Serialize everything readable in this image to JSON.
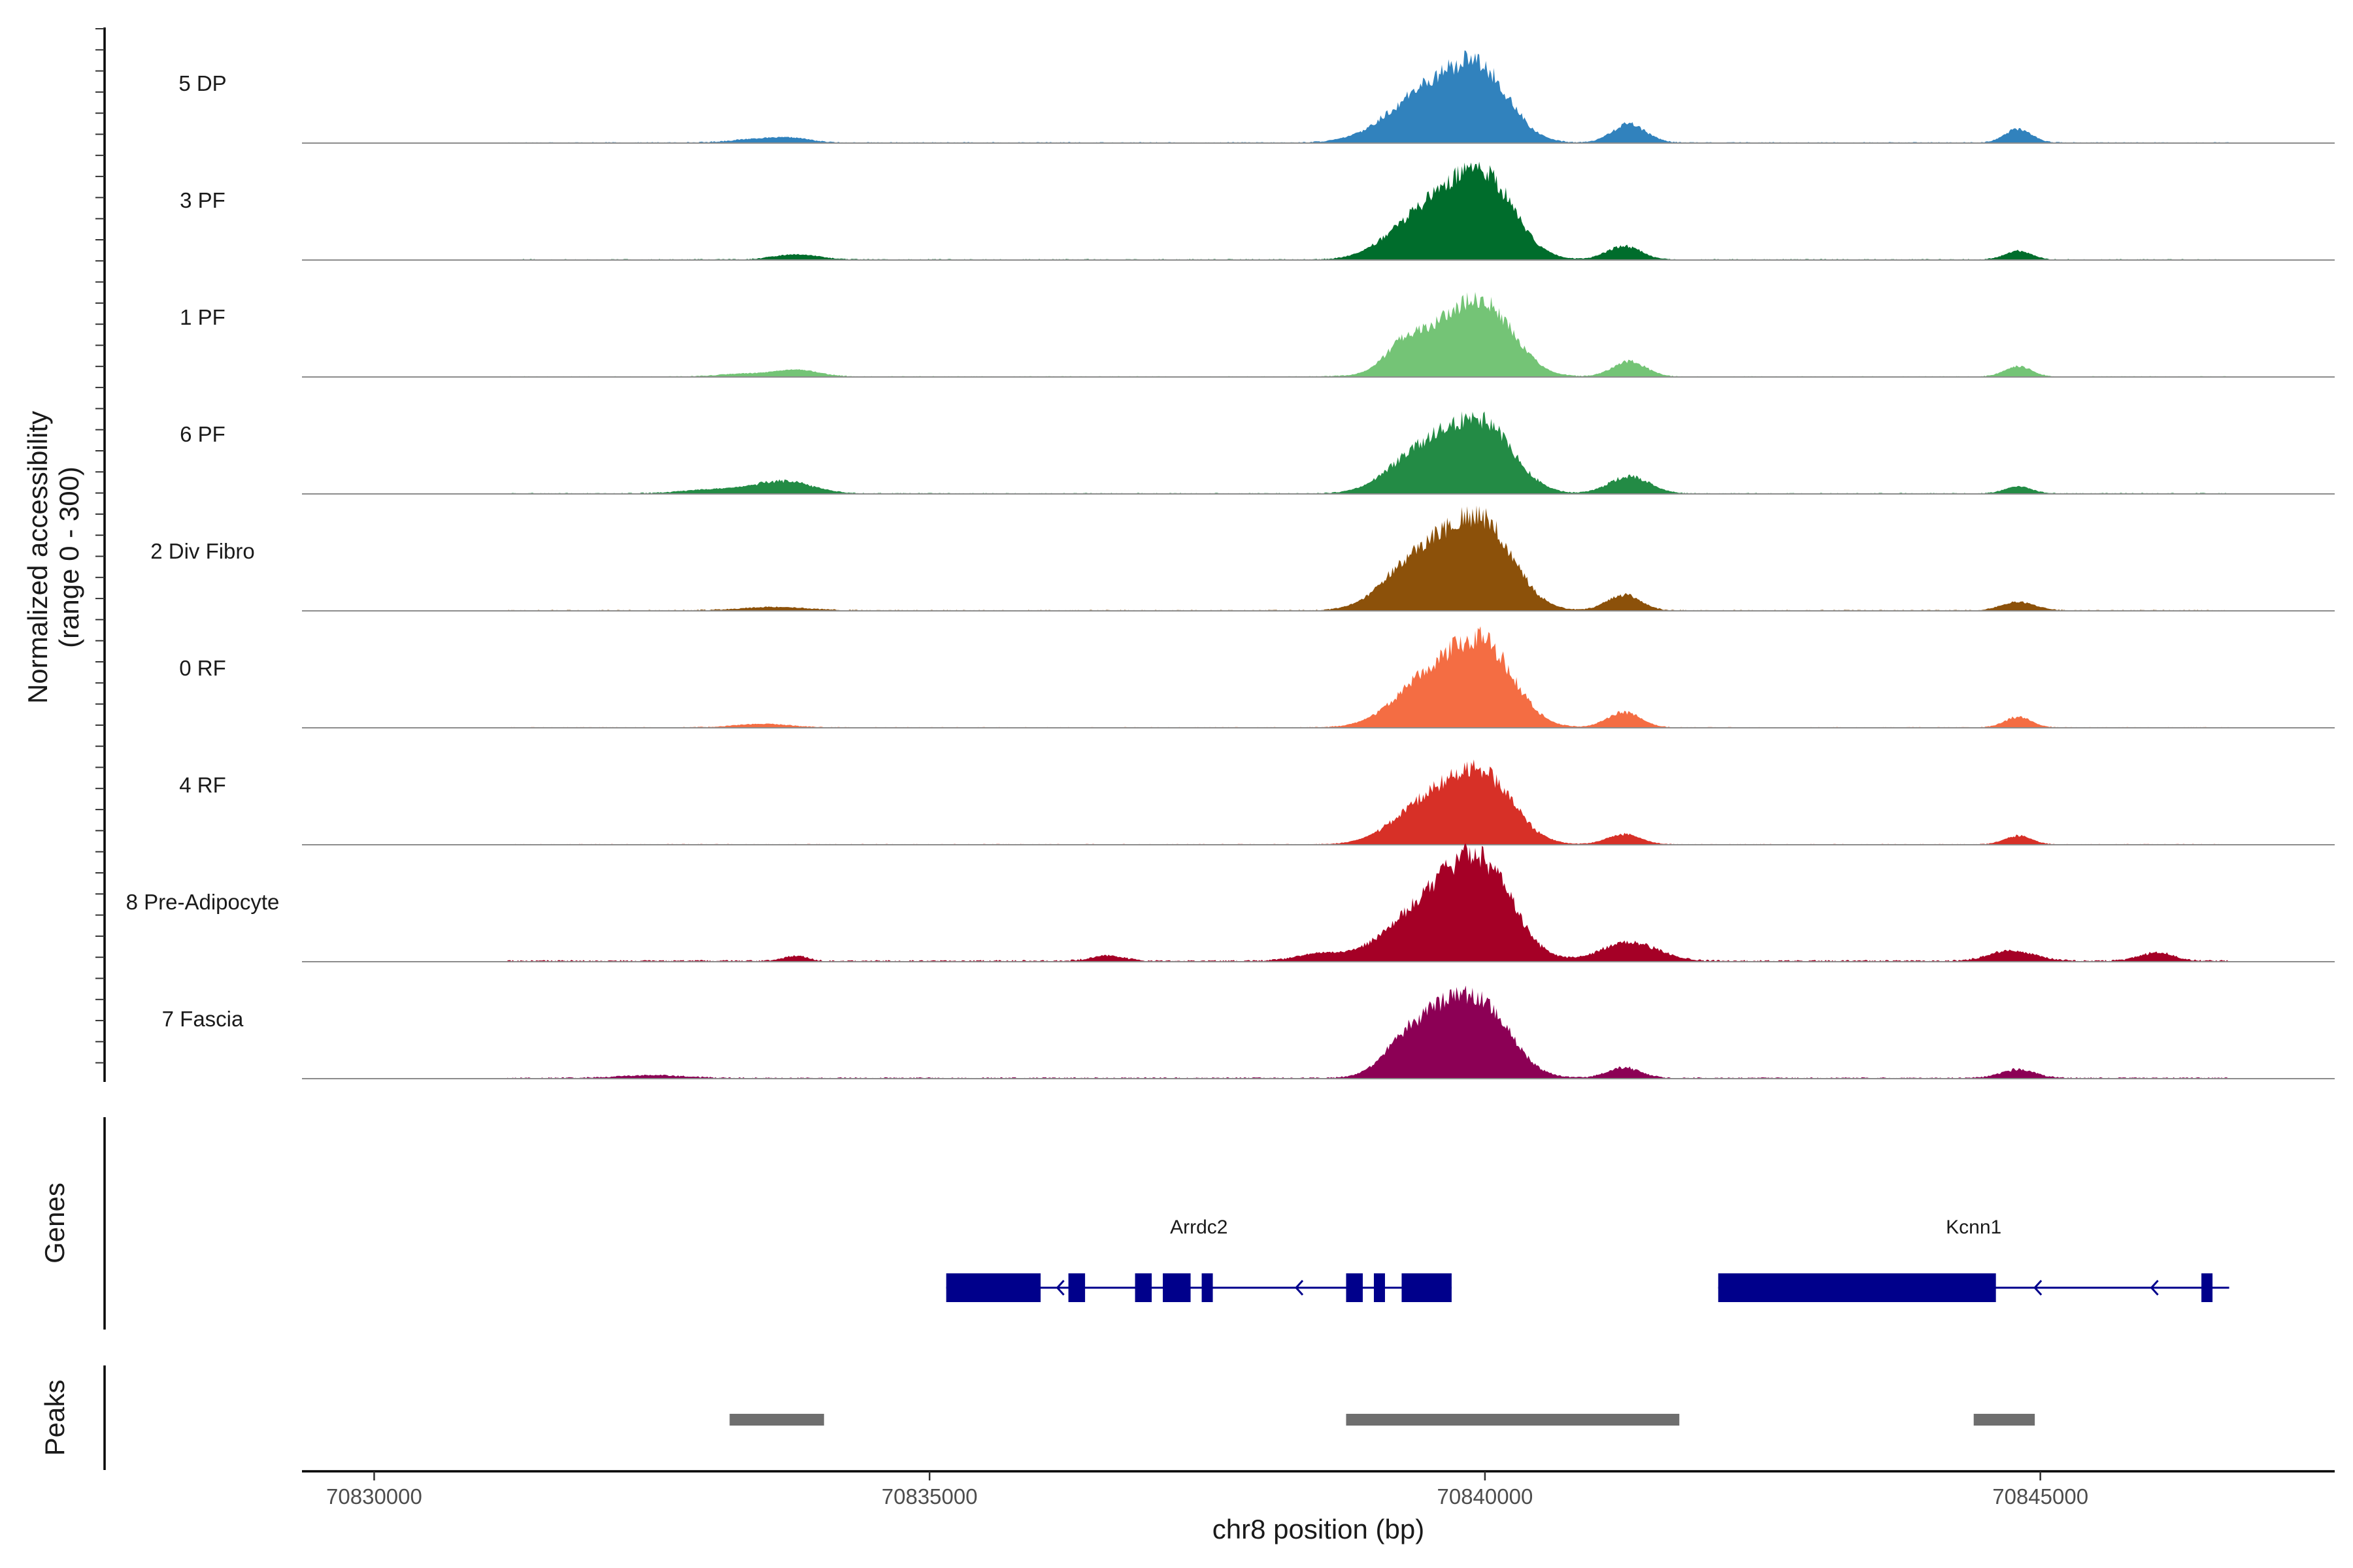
{
  "chart_data": {
    "type": "area",
    "title": "",
    "xlabel": "chr8 position (bp)",
    "ylabel_line1": "Normalized accessibility",
    "ylabel_line2": "(range 0 - 300)",
    "y_range": [
      0,
      300
    ],
    "xlim": [
      70829350,
      70847650
    ],
    "x_ticks": [
      {
        "value": 70830000,
        "label": "70830000"
      },
      {
        "value": 70835000,
        "label": "70835000"
      },
      {
        "value": 70840000,
        "label": "70840000"
      },
      {
        "value": 70845000,
        "label": "70845000"
      }
    ],
    "signal_range_bp": [
      70831200,
      70846700
    ],
    "tracks": [
      {
        "name": "5 DP",
        "color": "#3182bd",
        "baseline_noise": 3,
        "peaks": [
          [
            70839600,
            155,
            350
          ],
          [
            70840000,
            140,
            250
          ],
          [
            70839200,
            25,
            300
          ],
          [
            70841300,
            55,
            150
          ],
          [
            70844800,
            40,
            120
          ],
          [
            70833500,
            12,
            250
          ],
          [
            70833800,
            8,
            150
          ]
        ]
      },
      {
        "name": "3 PF",
        "color": "#006d2c",
        "baseline_noise": 3,
        "peaks": [
          [
            70839700,
            175,
            350
          ],
          [
            70840050,
            140,
            250
          ],
          [
            70839250,
            35,
            250
          ],
          [
            70841250,
            40,
            150
          ],
          [
            70844800,
            25,
            120
          ],
          [
            70833800,
            15,
            200
          ]
        ]
      },
      {
        "name": "1 PF",
        "color": "#74c476",
        "baseline_noise": 2.5,
        "peaks": [
          [
            70839700,
            150,
            350
          ],
          [
            70840050,
            120,
            250
          ],
          [
            70839250,
            45,
            150
          ],
          [
            70841300,
            45,
            150
          ],
          [
            70844800,
            30,
            120
          ],
          [
            70833800,
            20,
            200
          ],
          [
            70833300,
            8,
            200
          ]
        ]
      },
      {
        "name": "6 PF",
        "color": "#238b45",
        "baseline_noise": 3,
        "peaks": [
          [
            70839700,
            150,
            350
          ],
          [
            70840050,
            110,
            250
          ],
          [
            70839300,
            40,
            250
          ],
          [
            70841300,
            50,
            180
          ],
          [
            70844800,
            20,
            120
          ],
          [
            70833700,
            35,
            250
          ],
          [
            70833100,
            12,
            300
          ]
        ]
      },
      {
        "name": "2 Div Fibro",
        "color": "#8c510a",
        "baseline_noise": 3,
        "peaks": [
          [
            70839700,
            190,
            350
          ],
          [
            70840050,
            140,
            250
          ],
          [
            70839250,
            55,
            250
          ],
          [
            70841250,
            45,
            150
          ],
          [
            70844800,
            25,
            150
          ],
          [
            70833600,
            10,
            300
          ]
        ]
      },
      {
        "name": "0 RF",
        "color": "#f46d43",
        "baseline_noise": 2.5,
        "peaks": [
          [
            70839700,
            170,
            350
          ],
          [
            70840050,
            140,
            250
          ],
          [
            70839300,
            30,
            250
          ],
          [
            70841250,
            45,
            150
          ],
          [
            70844800,
            30,
            120
          ],
          [
            70833500,
            10,
            250
          ]
        ]
      },
      {
        "name": "4 RF",
        "color": "#d73027",
        "baseline_noise": 2.5,
        "peaks": [
          [
            70839700,
            150,
            350
          ],
          [
            70840050,
            110,
            250
          ],
          [
            70839300,
            25,
            250
          ],
          [
            70841250,
            30,
            150
          ],
          [
            70844800,
            25,
            120
          ]
        ]
      },
      {
        "name": "8 Pre-Adipocyte",
        "color": "#a50026",
        "baseline_noise": 5,
        "peaks": [
          [
            70839700,
            215,
            350
          ],
          [
            70840050,
            150,
            250
          ],
          [
            70839200,
            40,
            300
          ],
          [
            70841300,
            55,
            250
          ],
          [
            70844750,
            30,
            200
          ],
          [
            70846050,
            25,
            150
          ],
          [
            70833800,
            15,
            100
          ],
          [
            70836600,
            15,
            150
          ],
          [
            70838500,
            20,
            200
          ]
        ]
      },
      {
        "name": "7 Fascia",
        "color": "#8c0055",
        "baseline_noise": 4,
        "peaks": [
          [
            70839650,
            185,
            300
          ],
          [
            70840050,
            130,
            250
          ],
          [
            70839250,
            55,
            200
          ],
          [
            70841250,
            30,
            150
          ],
          [
            70844800,
            25,
            150
          ],
          [
            70832500,
            8,
            300
          ]
        ]
      }
    ],
    "genes_panel_label": "Genes",
    "genes": [
      {
        "name": "Arrdc2",
        "strand": "-",
        "start": 70835150,
        "end": 70839700,
        "exons": [
          [
            70835150,
            70836000
          ],
          [
            70836250,
            70836400
          ],
          [
            70836850,
            70837000
          ],
          [
            70837100,
            70837350
          ],
          [
            70837450,
            70837550
          ],
          [
            70838750,
            70838900
          ],
          [
            70839000,
            70839100
          ],
          [
            70839250,
            70839700
          ]
        ],
        "arrows": [
          70836150,
          70838300
        ]
      },
      {
        "name": "Kcnn1",
        "strand": "-",
        "start": 70842100,
        "end": 70846700,
        "exons": [
          [
            70842100,
            70844600
          ],
          [
            70846450,
            70846550
          ]
        ],
        "arrows": [
          70844950,
          70846000
        ]
      }
    ],
    "peaks_panel_label": "Peaks",
    "peak_regions": [
      [
        70833200,
        70834050
      ],
      [
        70838750,
        70841750
      ],
      [
        70844400,
        70844950
      ]
    ]
  }
}
